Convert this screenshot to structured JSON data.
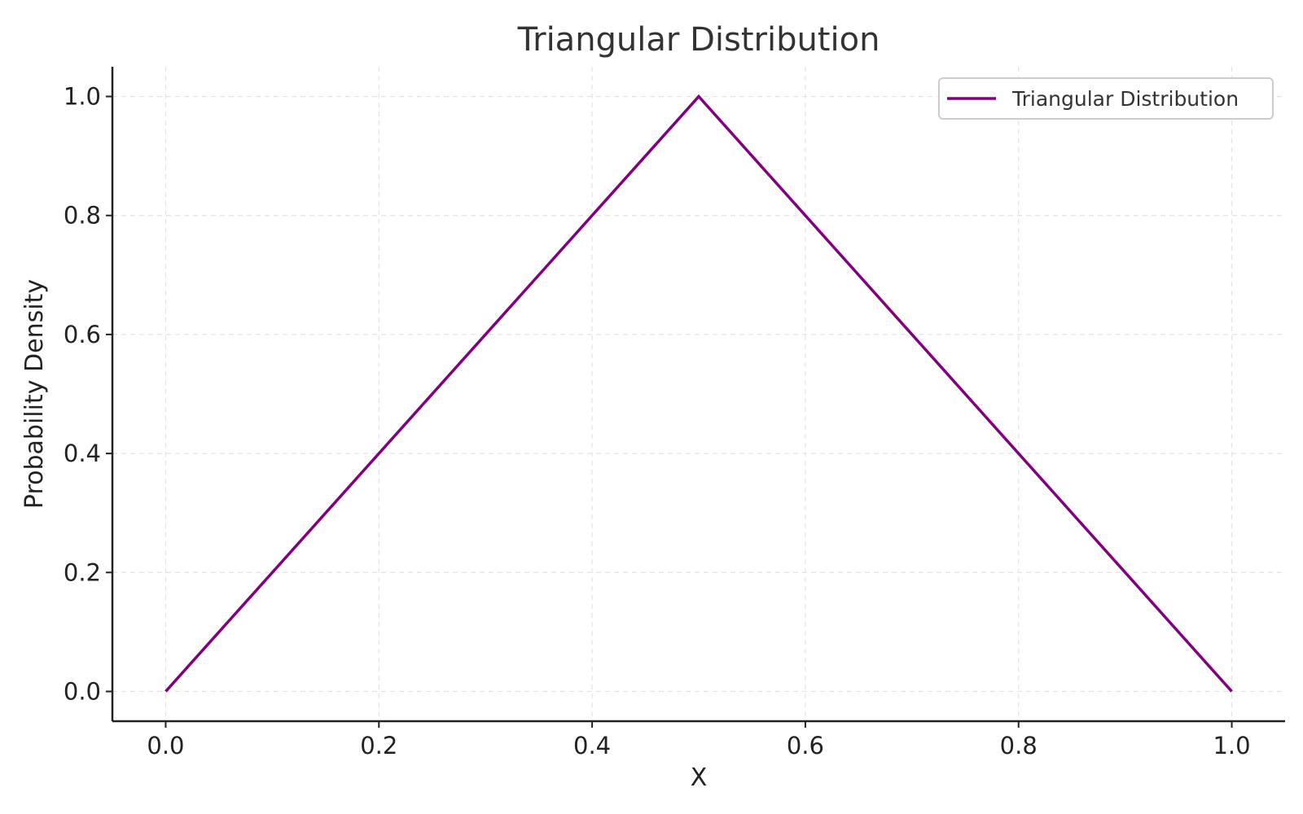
{
  "chart_data": {
    "type": "line",
    "title": "Triangular Distribution",
    "xlabel": "X",
    "ylabel": "Probability Density",
    "xlim": [
      -0.05,
      1.05
    ],
    "ylim": [
      -0.05,
      1.05
    ],
    "xticks": [
      0.0,
      0.2,
      0.4,
      0.6,
      0.8,
      1.0
    ],
    "xtick_labels": [
      "0.0",
      "0.2",
      "0.4",
      "0.6",
      "0.8",
      "1.0"
    ],
    "yticks": [
      0.0,
      0.2,
      0.4,
      0.6,
      0.8,
      1.0
    ],
    "ytick_labels": [
      "0.0",
      "0.2",
      "0.4",
      "0.6",
      "0.8",
      "1.0"
    ],
    "grid": true,
    "legend_position": "top-right",
    "series": [
      {
        "name": "Triangular Distribution",
        "color": "#800080",
        "x": [
          0.0,
          0.5,
          1.0
        ],
        "y": [
          0.0,
          1.0,
          0.0
        ]
      }
    ]
  }
}
